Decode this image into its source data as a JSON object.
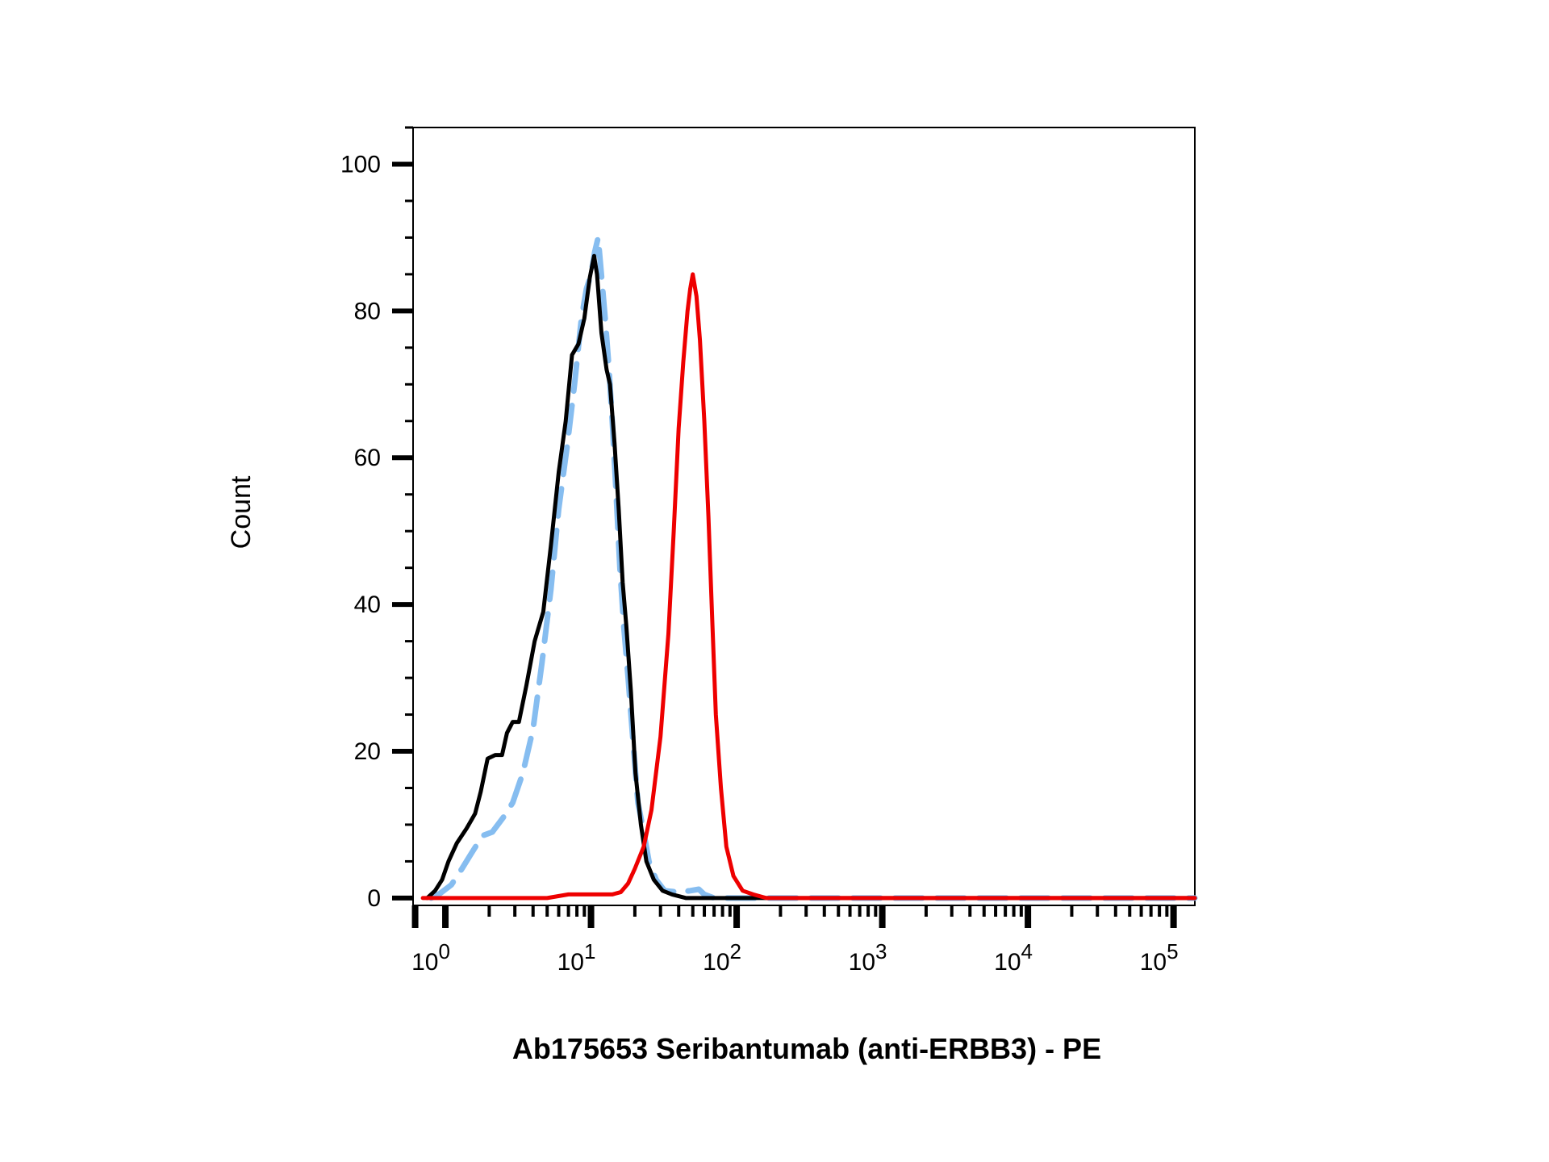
{
  "chart_data": {
    "type": "line",
    "title": "",
    "xlabel": "Ab175653 Seribantumab (anti-ERBB3) - PE",
    "ylabel": "Count",
    "x_scale": "log",
    "xlim": [
      0.6,
      140000
    ],
    "ylim": [
      -1,
      105
    ],
    "grid": false,
    "legend": "none",
    "x_ticks": [
      {
        "value": 1,
        "base": "10",
        "exp": "0"
      },
      {
        "value": 10,
        "base": "10",
        "exp": "1"
      },
      {
        "value": 100,
        "base": "10",
        "exp": "2"
      },
      {
        "value": 1000,
        "base": "10",
        "exp": "3"
      },
      {
        "value": 10000,
        "base": "10",
        "exp": "4"
      },
      {
        "value": 100000,
        "base": "10",
        "exp": "5"
      }
    ],
    "y_ticks": [
      {
        "value": 0,
        "label": "0"
      },
      {
        "value": 20,
        "label": "20"
      },
      {
        "value": 40,
        "label": "40"
      },
      {
        "value": 60,
        "label": "60"
      },
      {
        "value": 80,
        "label": "80"
      },
      {
        "value": 100,
        "label": "100"
      }
    ],
    "series": [
      {
        "color": "#000000",
        "style": "solid",
        "points": [
          [
            0.75,
            0
          ],
          [
            0.85,
            1
          ],
          [
            0.95,
            2.5
          ],
          [
            1.05,
            5
          ],
          [
            1.2,
            7.5
          ],
          [
            1.4,
            9.5
          ],
          [
            1.6,
            11.5
          ],
          [
            1.75,
            14.5
          ],
          [
            1.95,
            19
          ],
          [
            2.2,
            19.5
          ],
          [
            2.45,
            19.5
          ],
          [
            2.65,
            22.5
          ],
          [
            2.9,
            24
          ],
          [
            3.2,
            24
          ],
          [
            3.6,
            29
          ],
          [
            4.1,
            35
          ],
          [
            4.7,
            39
          ],
          [
            5.3,
            48
          ],
          [
            6.0,
            58
          ],
          [
            6.7,
            65
          ],
          [
            7.4,
            74
          ],
          [
            8.2,
            75.5
          ],
          [
            9.0,
            79
          ],
          [
            9.8,
            84.5
          ],
          [
            10.5,
            87.5
          ],
          [
            11.0,
            85
          ],
          [
            11.8,
            77
          ],
          [
            12.8,
            72
          ],
          [
            13.5,
            70
          ],
          [
            14.5,
            62
          ],
          [
            15.5,
            53
          ],
          [
            16.5,
            43
          ],
          [
            17.5,
            37
          ],
          [
            18.8,
            28
          ],
          [
            20.2,
            17
          ],
          [
            22,
            10
          ],
          [
            24,
            5
          ],
          [
            27,
            2.5
          ],
          [
            31,
            1
          ],
          [
            36,
            0.5
          ],
          [
            45,
            0
          ],
          [
            80,
            0
          ],
          [
            140000,
            0
          ]
        ]
      },
      {
        "color": "#86bdf0",
        "style": "dashed",
        "points": [
          [
            0.8,
            0
          ],
          [
            0.9,
            0.5
          ],
          [
            1.1,
            1.8
          ],
          [
            1.3,
            4
          ],
          [
            1.5,
            6
          ],
          [
            1.8,
            8.5
          ],
          [
            2.1,
            9
          ],
          [
            2.5,
            11
          ],
          [
            2.9,
            13
          ],
          [
            3.4,
            17
          ],
          [
            4.0,
            23
          ],
          [
            4.6,
            32
          ],
          [
            5.3,
            42
          ],
          [
            6.0,
            53
          ],
          [
            6.9,
            62
          ],
          [
            7.7,
            70
          ],
          [
            8.6,
            79
          ],
          [
            9.3,
            83
          ],
          [
            10.0,
            85
          ],
          [
            10.6,
            88
          ],
          [
            11.2,
            90
          ],
          [
            11.9,
            84
          ],
          [
            12.5,
            79
          ],
          [
            13.2,
            73
          ],
          [
            14.0,
            65
          ],
          [
            14.8,
            56
          ],
          [
            15.8,
            45
          ],
          [
            16.8,
            37
          ],
          [
            18.0,
            30
          ],
          [
            19.5,
            21
          ],
          [
            21,
            13
          ],
          [
            23,
            9
          ],
          [
            25,
            5
          ],
          [
            28,
            2.5
          ],
          [
            32,
            1
          ],
          [
            40,
            0.8
          ],
          [
            48,
            1
          ],
          [
            55,
            1.2
          ],
          [
            60,
            0.5
          ],
          [
            70,
            0
          ],
          [
            140000,
            0
          ]
        ]
      },
      {
        "color": "#ee0000",
        "style": "solid",
        "points": [
          [
            0.7,
            0
          ],
          [
            5,
            0
          ],
          [
            7,
            0.5
          ],
          [
            14,
            0.5
          ],
          [
            16,
            0.8
          ],
          [
            18,
            2
          ],
          [
            20,
            4
          ],
          [
            23,
            7
          ],
          [
            26,
            12
          ],
          [
            30,
            22
          ],
          [
            34,
            36
          ],
          [
            37,
            50
          ],
          [
            40,
            64
          ],
          [
            43,
            73
          ],
          [
            46,
            80
          ],
          [
            48,
            83
          ],
          [
            50,
            85
          ],
          [
            53,
            82
          ],
          [
            56,
            76
          ],
          [
            60,
            65
          ],
          [
            64,
            52
          ],
          [
            68,
            38
          ],
          [
            72,
            25
          ],
          [
            78,
            15
          ],
          [
            85,
            7
          ],
          [
            95,
            3
          ],
          [
            110,
            1
          ],
          [
            130,
            0.5
          ],
          [
            160,
            0
          ],
          [
            140000,
            0
          ]
        ]
      }
    ]
  }
}
